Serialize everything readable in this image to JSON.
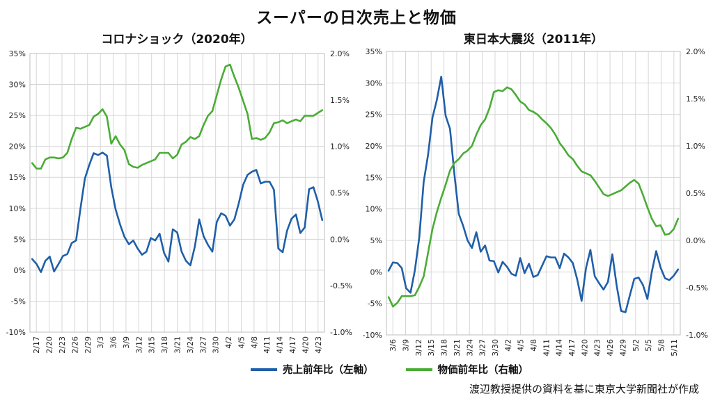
{
  "title": "スーパーの日次売上と物価",
  "source": "渡辺教授提供の資料を基に東京大学新聞社が作成",
  "legend": [
    {
      "label": "売上前年比（左軸）",
      "color": "#1f5fa8"
    },
    {
      "label": "物価前年比（右軸）",
      "color": "#4aac36"
    }
  ],
  "chart_data": [
    {
      "type": "line",
      "title": "コロナショック（2020年）",
      "x_tick_labels": [
        "2/17",
        "2/20",
        "2/23",
        "2/26",
        "2/29",
        "3/3",
        "3/6",
        "3/9",
        "3/12",
        "3/15",
        "3/18",
        "3/21",
        "3/24",
        "3/27",
        "3/30",
        "4/2",
        "4/5",
        "4/8",
        "4/11",
        "4/14",
        "4/17",
        "4/20",
        "4/23"
      ],
      "y_left": {
        "ticks": [
          "-10%",
          "-5%",
          "0%",
          "5%",
          "10%",
          "15%",
          "20%",
          "25%",
          "30%",
          "35%"
        ],
        "range": [
          -10,
          35
        ]
      },
      "y_right": {
        "ticks": [
          "-1.0%",
          "-0.5%",
          "0.0%",
          "0.5%",
          "1.0%",
          "1.5%",
          "2.0%"
        ],
        "range": [
          -1.0,
          2.0
        ]
      },
      "grid": true,
      "series": [
        {
          "name": "売上前年比（左軸）",
          "axis": "left",
          "color": "#1f5fa8",
          "values": [
            1.8,
            1.0,
            -0.3,
            1.5,
            2.2,
            -0.2,
            1.0,
            2.3,
            2.6,
            4.4,
            4.8,
            10.0,
            14.8,
            17.0,
            18.9,
            18.6,
            19.0,
            18.5,
            13.4,
            9.8,
            7.4,
            5.4,
            4.2,
            4.8,
            3.5,
            2.5,
            3.0,
            5.2,
            4.8,
            5.9,
            2.8,
            1.4,
            6.6,
            6.1,
            3.0,
            1.5,
            0.8,
            3.8,
            8.2,
            5.5,
            4.1,
            3.0,
            7.8,
            9.2,
            8.8,
            7.2,
            8.2,
            10.8,
            13.8,
            15.4,
            15.9,
            16.2,
            14.0,
            14.3,
            14.3,
            13.0,
            3.5,
            2.9,
            6.4,
            8.3,
            9.0,
            6.0,
            6.9,
            13.1,
            13.4,
            11.1,
            8.1
          ]
        },
        {
          "name": "物価前年比（右軸）",
          "axis": "right",
          "color": "#4aac36",
          "values": [
            0.82,
            0.76,
            0.76,
            0.86,
            0.88,
            0.88,
            0.87,
            0.88,
            0.93,
            1.08,
            1.2,
            1.19,
            1.21,
            1.23,
            1.32,
            1.35,
            1.4,
            1.32,
            1.03,
            1.11,
            1.02,
            0.96,
            0.81,
            0.78,
            0.77,
            0.8,
            0.82,
            0.84,
            0.86,
            0.93,
            0.93,
            0.93,
            0.87,
            0.91,
            1.02,
            1.05,
            1.1,
            1.08,
            1.11,
            1.23,
            1.33,
            1.38,
            1.55,
            1.72,
            1.86,
            1.88,
            1.75,
            1.63,
            1.49,
            1.35,
            1.08,
            1.09,
            1.07,
            1.09,
            1.15,
            1.25,
            1.26,
            1.28,
            1.25,
            1.27,
            1.29,
            1.27,
            1.33,
            1.33,
            1.33,
            1.36,
            1.39
          ]
        }
      ]
    },
    {
      "type": "line",
      "title": "東日本大震災（2011年）",
      "x_tick_labels": [
        "3/6",
        "3/9",
        "3/12",
        "3/15",
        "3/18",
        "3/21",
        "3/24",
        "3/27",
        "3/30",
        "4/2",
        "4/5",
        "4/8",
        "4/11",
        "4/14",
        "4/17",
        "4/20",
        "4/23",
        "4/26",
        "4/29",
        "5/2",
        "5/5",
        "5/8",
        "5/11"
      ],
      "y_left": {
        "ticks": [
          "-10%",
          "-5%",
          "0%",
          "5%",
          "10%",
          "15%",
          "20%",
          "25%",
          "30%",
          "35%"
        ],
        "range": [
          -10,
          35
        ]
      },
      "y_right": {
        "ticks": [
          "-1.0%",
          "-0.5%",
          "0.0%",
          "0.5%",
          "1.0%",
          "1.5%",
          "2.0%"
        ],
        "range": [
          -1.0,
          2.0
        ]
      },
      "grid": true,
      "series": [
        {
          "name": "売上前年比（左軸）",
          "axis": "left",
          "color": "#1f5fa8",
          "values": [
            0.2,
            1.5,
            1.4,
            0.6,
            -2.6,
            -3.3,
            0.3,
            5.5,
            14.3,
            18.6,
            24.5,
            27.3,
            31.0,
            24.8,
            22.7,
            15.5,
            9.2,
            7.3,
            5.0,
            3.8,
            6.3,
            3.2,
            4.2,
            1.8,
            1.7,
            -0.1,
            1.6,
            0.8,
            -0.3,
            -0.6,
            2.2,
            -0.2,
            1.3,
            -0.8,
            -0.5,
            1.0,
            2.5,
            2.3,
            2.3,
            0.6,
            2.9,
            2.3,
            1.4,
            -1.2,
            -4.6,
            0.6,
            3.5,
            -0.7,
            -1.8,
            -2.8,
            -1.6,
            2.8,
            -2.2,
            -6.2,
            -6.4,
            -3.7,
            -1.1,
            -0.9,
            -2.1,
            -4.3,
            0.0,
            3.3,
            0.7,
            -1.0,
            -1.3,
            -0.6,
            0.4
          ]
        },
        {
          "name": "物価前年比（右軸）",
          "axis": "right",
          "color": "#4aac36",
          "values": [
            -0.6,
            -0.7,
            -0.66,
            -0.59,
            -0.59,
            -0.59,
            -0.58,
            -0.49,
            -0.38,
            -0.13,
            0.12,
            0.3,
            0.45,
            0.59,
            0.74,
            0.82,
            0.86,
            0.92,
            0.95,
            1.0,
            1.12,
            1.22,
            1.28,
            1.4,
            1.57,
            1.59,
            1.58,
            1.62,
            1.6,
            1.54,
            1.47,
            1.44,
            1.38,
            1.36,
            1.33,
            1.28,
            1.24,
            1.19,
            1.12,
            1.03,
            0.97,
            0.9,
            0.86,
            0.79,
            0.73,
            0.71,
            0.69,
            0.63,
            0.56,
            0.49,
            0.47,
            0.49,
            0.51,
            0.53,
            0.57,
            0.61,
            0.64,
            0.6,
            0.48,
            0.35,
            0.23,
            0.15,
            0.16,
            0.06,
            0.07,
            0.12,
            0.23
          ]
        }
      ]
    }
  ]
}
